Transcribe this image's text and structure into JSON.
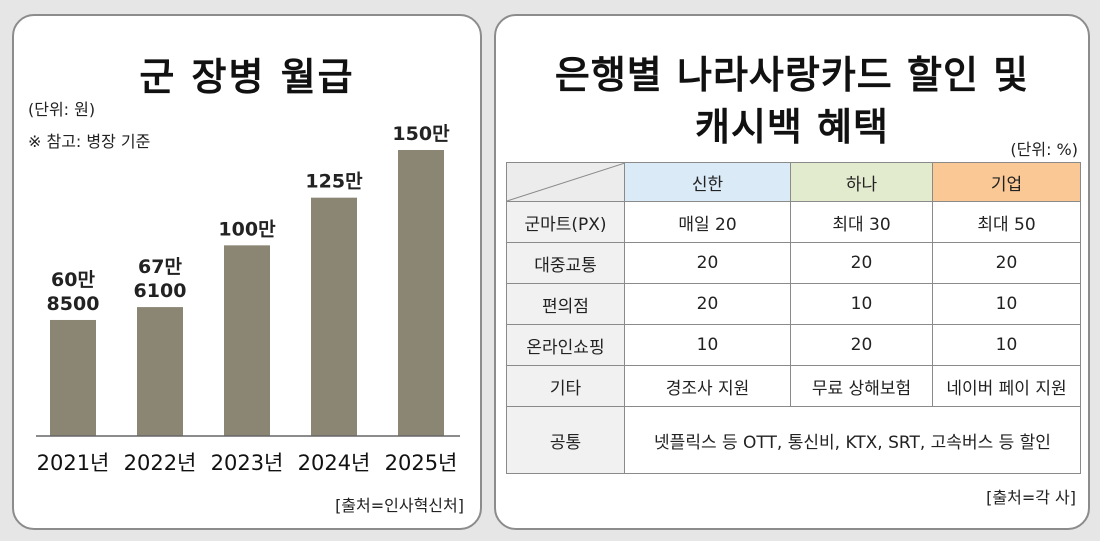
{
  "left": {
    "title": "군 장병 월급",
    "unit_note": "(단위: 원)",
    "ref_note": "※ 참고: 병장 기준",
    "source": "[출처=인사혁신처]"
  },
  "chart_data": {
    "type": "bar",
    "title": "군 장병 월급",
    "categories": [
      "2021년",
      "2022년",
      "2023년",
      "2024년",
      "2025년"
    ],
    "values": [
      608500,
      676100,
      1000000,
      1250000,
      1500000
    ],
    "data_labels": [
      [
        "60만",
        "8500"
      ],
      [
        "67만",
        "6100"
      ],
      [
        "100만"
      ],
      [
        "125만"
      ],
      [
        "150만"
      ]
    ],
    "bar_color": "#8b8574",
    "ylim": [
      0,
      1500000
    ],
    "grid": false
  },
  "right": {
    "title_line1": "은행별 나라사랑카드 할인 및",
    "title_line2": "캐시백 혜택",
    "unit": "(단위: %)",
    "source": "[출처=각 사]",
    "columns": [
      {
        "label": "신한",
        "color": "#dbeaf7"
      },
      {
        "label": "하나",
        "color": "#e3ebcf"
      },
      {
        "label": "기업",
        "color": "#f9c895"
      }
    ],
    "rows": [
      {
        "label": "군마트(PX)",
        "cells": [
          "매일 20",
          "최대 30",
          "최대 50"
        ]
      },
      {
        "label": "대중교통",
        "cells": [
          "20",
          "20",
          "20"
        ]
      },
      {
        "label": "편의점",
        "cells": [
          "20",
          "10",
          "10"
        ]
      },
      {
        "label": "온라인쇼핑",
        "cells": [
          "10",
          "20",
          "10"
        ]
      },
      {
        "label": "기타",
        "cells": [
          "경조사 지원",
          "무료 상해보험",
          "네이버 페이 지원"
        ]
      }
    ],
    "common": {
      "label": "공통",
      "text": "넷플릭스 등 OTT, 통신비, KTX, SRT, 고속버스 등 할인"
    }
  }
}
